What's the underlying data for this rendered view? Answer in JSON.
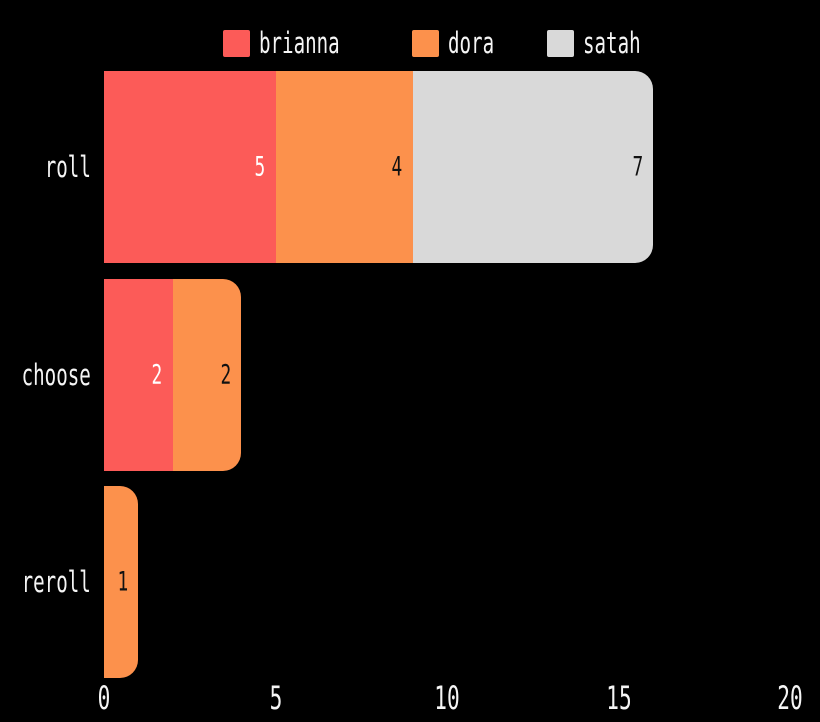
{
  "chart_data": {
    "type": "bar",
    "orientation": "horizontal",
    "stacked": true,
    "title": "",
    "xlabel": "",
    "ylabel": "",
    "categories": [
      "roll",
      "choose",
      "reroll"
    ],
    "series": [
      {
        "name": "brianna",
        "color": "#FC5B58",
        "label_color": "#ffffff",
        "values": [
          5,
          2,
          0
        ]
      },
      {
        "name": "dora",
        "color": "#FC914C",
        "label_color": "#111111",
        "values": [
          4,
          2,
          1
        ]
      },
      {
        "name": "satah",
        "color": "#D9D9D9",
        "label_color": "#111111",
        "values": [
          7,
          0,
          0
        ]
      }
    ],
    "totals": [
      16,
      4,
      1
    ],
    "x_ticks": [
      "0",
      "5",
      "10",
      "15",
      "20"
    ],
    "xlim": [
      0,
      20
    ],
    "grid": false,
    "legend_position": "top-center",
    "background_color": "#000000",
    "text_color": "#f5f5f5"
  }
}
